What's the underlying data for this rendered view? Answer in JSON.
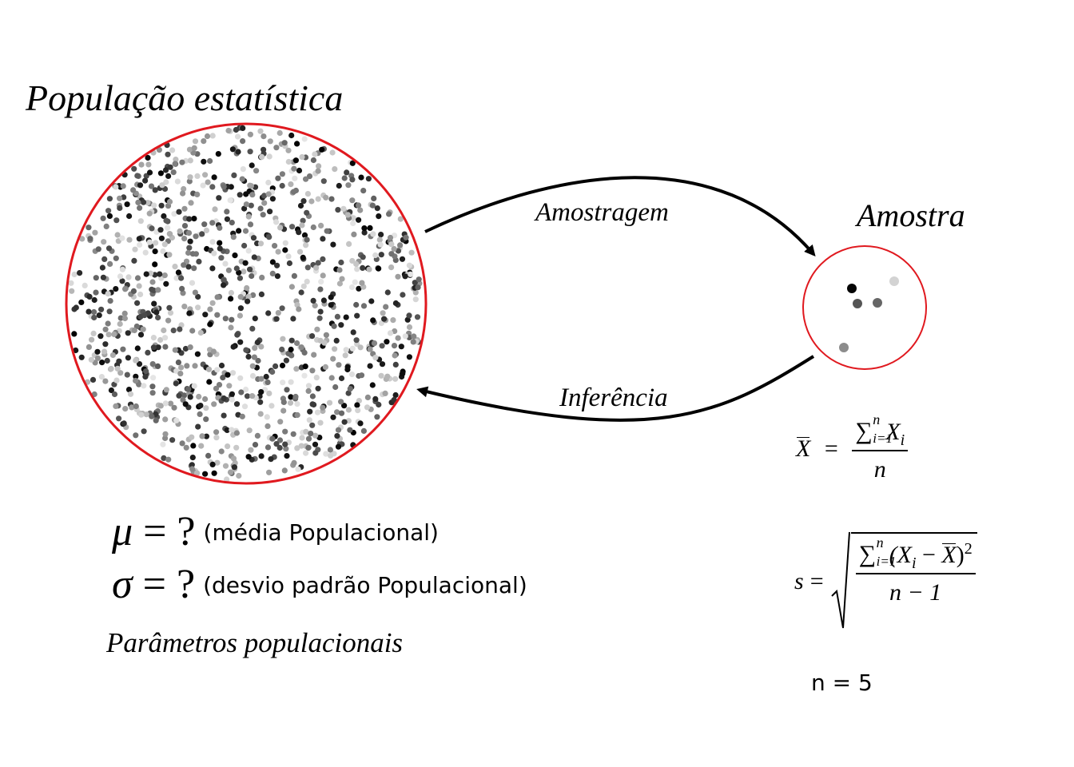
{
  "population": {
    "title": "População estatística",
    "circle_color": "#e0191f"
  },
  "sample": {
    "title": "Amostra",
    "circle_color": "#e0191f",
    "n_label": "n = 5"
  },
  "arrows": {
    "sampling_label": "Amostragem",
    "inference_label": "Inferência"
  },
  "parameters": {
    "mu": {
      "symbol": "μ",
      "eq": " = ?",
      "desc": "(média Populacional)"
    },
    "sigma": {
      "symbol": "σ",
      "eq": " = ?",
      "desc": "(desvio padrão Populacional)"
    },
    "caption": "Parâmetros populacionais"
  },
  "formulas": {
    "mean": {
      "lhs": "X",
      "eq": "=",
      "sum_top": "n",
      "sum_bottom": "i=1",
      "summand": "X",
      "summand_sub": "i",
      "den": "n"
    },
    "sd": {
      "lhs": "s",
      "eq": "=",
      "sum_top": "n",
      "sum_bottom": "i=1",
      "summand_a": "(X",
      "summand_sub": "i",
      "minus": " − ",
      "xbar": "X",
      "close": ")",
      "power": "2",
      "den": "n − 1"
    }
  }
}
